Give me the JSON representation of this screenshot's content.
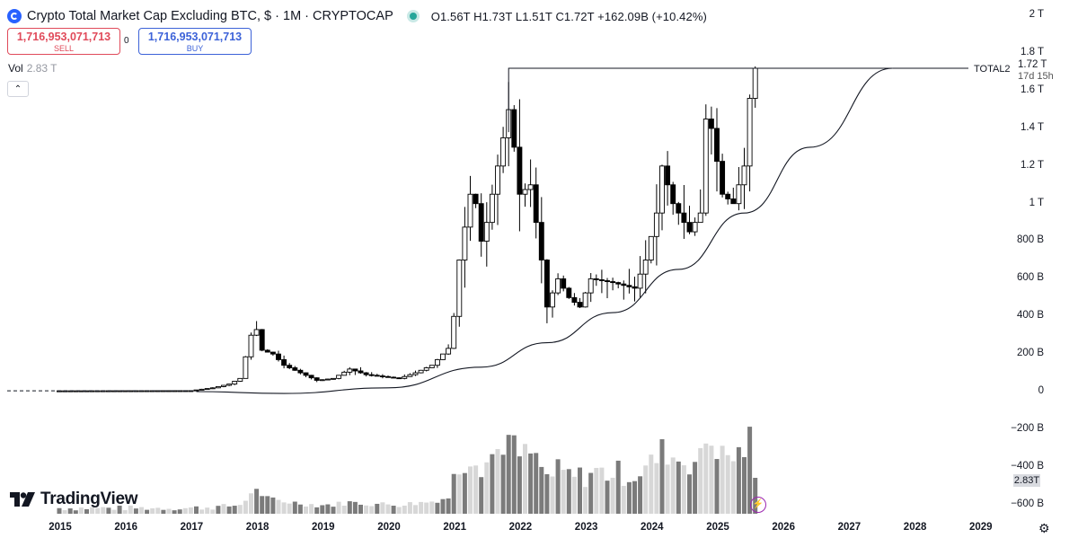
{
  "header": {
    "title": "Crypto Total Market Cap Excluding BTC, $ · 1M · CRYPTOCAP",
    "ohlc": "O1.56T H1.73T L1.51T C1.72T +162.09B (+10.42%)",
    "logo_icon": "crypto-circle-icon",
    "status_color": "#26a69a"
  },
  "trade": {
    "sell_price": "1,716,953,071,713",
    "sell_label": "SELL",
    "buy_price": "1,716,953,071,713",
    "buy_label": "BUY",
    "spread": "0"
  },
  "volume": {
    "label": "Vol",
    "value": "2.83 T",
    "tag": "2.83T"
  },
  "collapse_icon": "chevron-up-icon",
  "price_tag": {
    "value": "1.72 T",
    "countdown": "17d 15h"
  },
  "drawing_label": "TOTAL2",
  "brand": "TradingView",
  "colors": {
    "up_body": "#ffffff",
    "down_body": "#000000",
    "wick": "#000000",
    "vol_dark": "#7b7b7b",
    "vol_light": "#d7d7d7"
  },
  "chart_data": {
    "type": "candlestick",
    "y_axis_labels": [
      "2 T",
      "1.8 T",
      "1.6 T",
      "1.4 T",
      "1.2 T",
      "1 T",
      "800 B",
      "600 B",
      "400 B",
      "200 B",
      "0",
      "−200 B",
      "−400 B",
      "−600 B"
    ],
    "x_axis_labels": [
      "2015",
      "2016",
      "2017",
      "2018",
      "2019",
      "2020",
      "2021",
      "2022",
      "2023",
      "2024",
      "2025",
      "2026",
      "2027",
      "2028",
      "2029"
    ],
    "y_unit": "USD billions",
    "ylim": [
      -600,
      2000
    ],
    "interval": "1M",
    "series": [
      {
        "name": "TOTAL2",
        "anchors": [
          {
            "d": "2015-01",
            "v": 4
          },
          {
            "d": "2017-01",
            "v": 5
          },
          {
            "d": "2017-05",
            "v": 20
          },
          {
            "d": "2017-08",
            "v": 40
          },
          {
            "d": "2017-10",
            "v": 70
          },
          {
            "d": "2017-12",
            "v": 300
          },
          {
            "d": "2018-01",
            "v": 330
          },
          {
            "d": "2018-02",
            "v": 220
          },
          {
            "d": "2018-04",
            "v": 200
          },
          {
            "d": "2018-06",
            "v": 140
          },
          {
            "d": "2018-09",
            "v": 100
          },
          {
            "d": "2018-12",
            "v": 60
          },
          {
            "d": "2019-03",
            "v": 70
          },
          {
            "d": "2019-06",
            "v": 120
          },
          {
            "d": "2019-09",
            "v": 90
          },
          {
            "d": "2019-12",
            "v": 80
          },
          {
            "d": "2020-03",
            "v": 70
          },
          {
            "d": "2020-06",
            "v": 100
          },
          {
            "d": "2020-09",
            "v": 140
          },
          {
            "d": "2020-12",
            "v": 230
          },
          {
            "d": "2021-01",
            "v": 400
          },
          {
            "d": "2021-02",
            "v": 700
          },
          {
            "d": "2021-04",
            "v": 1050
          },
          {
            "d": "2021-05",
            "v": 1000
          },
          {
            "d": "2021-06",
            "v": 800
          },
          {
            "d": "2021-07",
            "v": 900
          },
          {
            "d": "2021-09",
            "v": 1200
          },
          {
            "d": "2021-11",
            "v": 1500
          },
          {
            "d": "2021-12",
            "v": 1300
          },
          {
            "d": "2022-01",
            "v": 1050
          },
          {
            "d": "2022-03",
            "v": 1100
          },
          {
            "d": "2022-05",
            "v": 700
          },
          {
            "d": "2022-06",
            "v": 450
          },
          {
            "d": "2022-08",
            "v": 600
          },
          {
            "d": "2022-10",
            "v": 500
          },
          {
            "d": "2022-12",
            "v": 450
          },
          {
            "d": "2023-02",
            "v": 600
          },
          {
            "d": "2023-06",
            "v": 580
          },
          {
            "d": "2023-10",
            "v": 550
          },
          {
            "d": "2023-12",
            "v": 700
          },
          {
            "d": "2024-02",
            "v": 950
          },
          {
            "d": "2024-03",
            "v": 1200
          },
          {
            "d": "2024-05",
            "v": 1000
          },
          {
            "d": "2024-08",
            "v": 850
          },
          {
            "d": "2024-10",
            "v": 950
          },
          {
            "d": "2024-11",
            "v": 1450
          },
          {
            "d": "2024-12",
            "v": 1400
          },
          {
            "d": "2025-02",
            "v": 1050
          },
          {
            "d": "2025-04",
            "v": 1000
          },
          {
            "d": "2025-05",
            "v": 1100
          },
          {
            "d": "2025-06",
            "v": 1200
          },
          {
            "d": "2025-07",
            "v": 1560
          },
          {
            "d": "2025-08",
            "v": 1720
          }
        ]
      }
    ],
    "last_bar": {
      "open": 1560,
      "high": 1730,
      "low": 1510,
      "close": 1720,
      "change": 162.09,
      "change_pct": 10.42
    },
    "annotations": {
      "resistance": {
        "from": "2021-11",
        "to": "2027-09",
        "value": 1720,
        "label": "TOTAL2"
      },
      "baseline": {
        "from": "2014-12",
        "to": "2017-02",
        "value": 4
      },
      "support_curve": [
        {
          "d": "2017-02",
          "v": 0
        },
        {
          "d": "2018-06",
          "v": -10
        },
        {
          "d": "2020-01",
          "v": 20
        },
        {
          "d": "2021-06",
          "v": 130
        },
        {
          "d": "2022-06",
          "v": 260
        },
        {
          "d": "2023-06",
          "v": 420
        },
        {
          "d": "2024-06",
          "v": 650
        },
        {
          "d": "2025-06",
          "v": 950
        },
        {
          "d": "2026-06",
          "v": 1300
        },
        {
          "d": "2027-09",
          "v": 1720
        }
      ]
    },
    "grid": false,
    "legend": "none"
  }
}
